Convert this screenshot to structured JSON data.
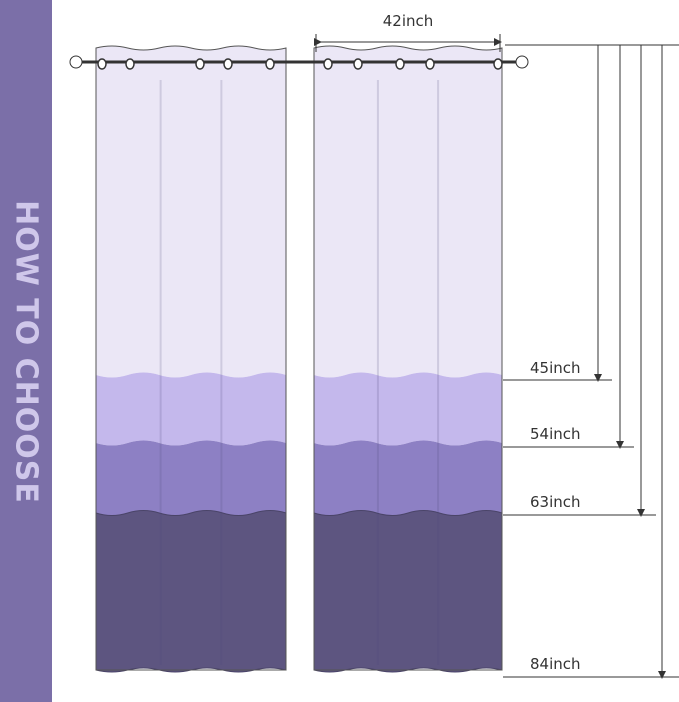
{
  "side_banner": {
    "text": "HOW TO CHOOSE"
  },
  "width_label": "42inch",
  "length_labels": [
    "45inch",
    "54inch",
    "63inch",
    "84inch"
  ],
  "colors": {
    "banner": "#7b6fa8",
    "white_section": "#ebe7f6",
    "light_section": "#c4b8ec",
    "mid_section": "#8d80c4",
    "dark_section": "#5d5580"
  }
}
